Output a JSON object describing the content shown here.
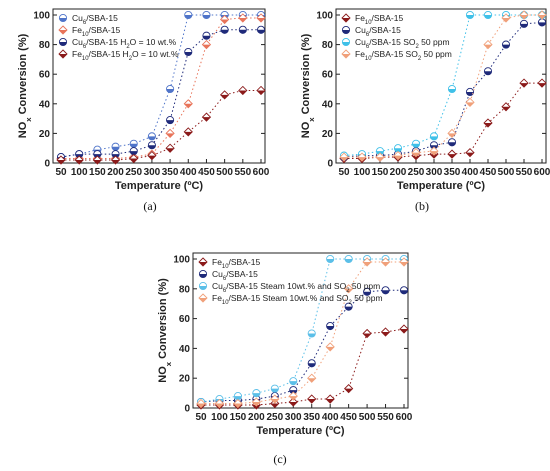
{
  "chart_data": [
    {
      "type": "scatter",
      "caption": "(a)",
      "xlabel": "Temperature (ºC)",
      "ylabel_main": "NO",
      "ylabel_sub": "x",
      "ylabel_rest": " Conversion (%)",
      "xlim": [
        50,
        600
      ],
      "ylim": [
        0,
        100
      ],
      "xticks": [
        50,
        100,
        150,
        200,
        250,
        300,
        350,
        400,
        450,
        500,
        550,
        600
      ],
      "yticks": [
        0,
        20,
        40,
        60,
        80,
        100
      ],
      "legend_position": "top-left",
      "series": [
        {
          "name": "Cu6/SBA-15",
          "color": "#4f74c9",
          "marker": "circle",
          "x": [
            50,
            100,
            150,
            200,
            250,
            300,
            350,
            400,
            450,
            500,
            550,
            600
          ],
          "y": [
            4,
            6,
            9,
            11,
            13,
            18,
            50,
            100,
            100,
            100,
            100,
            100
          ]
        },
        {
          "name": "Fe10/SBA-15",
          "color": "#e8745a",
          "marker": "diamond",
          "x": [
            50,
            100,
            150,
            200,
            250,
            300,
            350,
            400,
            450,
            500,
            550,
            600
          ],
          "y": [
            3,
            3,
            3,
            3,
            4,
            6,
            20,
            40,
            80,
            97,
            98,
            98
          ]
        },
        {
          "name": "Cu6/SBA-15 H2O = 10 wt.%",
          "color": "#1f2a7a",
          "marker": "circle",
          "x": [
            50,
            100,
            150,
            200,
            250,
            300,
            350,
            400,
            450,
            500,
            550,
            600
          ],
          "y": [
            4,
            6,
            6,
            6,
            8,
            12,
            29,
            75,
            86,
            90,
            90,
            90
          ]
        },
        {
          "name": "Fe10/SBA-15 H2O = 10 wt.%",
          "color": "#8b1a1a",
          "marker": "diamond",
          "x": [
            50,
            100,
            150,
            200,
            250,
            300,
            350,
            400,
            450,
            500,
            550,
            600
          ],
          "y": [
            2,
            2,
            2,
            2,
            3,
            5,
            10,
            21,
            31,
            46,
            49,
            49
          ]
        }
      ]
    },
    {
      "type": "scatter",
      "caption": "(b)",
      "xlabel": "Temperature (ºC)",
      "ylabel_main": "NO",
      "ylabel_sub": "x",
      "ylabel_rest": " Conversion (%)",
      "xlim": [
        50,
        600
      ],
      "ylim": [
        0,
        100
      ],
      "xticks": [
        50,
        100,
        150,
        200,
        250,
        300,
        350,
        400,
        450,
        500,
        550,
        600
      ],
      "yticks": [
        0,
        20,
        40,
        60,
        80,
        100
      ],
      "legend_position": "top-left",
      "series": [
        {
          "name": "Fe10/SBA-15",
          "color": "#8b1a1a",
          "marker": "diamond",
          "x": [
            50,
            100,
            150,
            200,
            250,
            300,
            350,
            400,
            450,
            500,
            550,
            600
          ],
          "y": [
            3,
            3,
            4,
            4,
            5,
            6,
            6,
            7,
            27,
            38,
            54,
            54
          ]
        },
        {
          "name": "Cu6/SBA-15",
          "color": "#1f2a7a",
          "marker": "circle",
          "x": [
            50,
            100,
            150,
            200,
            250,
            300,
            350,
            400,
            450,
            500,
            550,
            600
          ],
          "y": [
            4,
            5,
            5,
            6,
            8,
            12,
            14,
            48,
            62,
            80,
            94,
            95
          ]
        },
        {
          "name": "Cu6/SBA-15 SO2 50 ppm",
          "color": "#3fc0e8",
          "marker": "circle",
          "x": [
            50,
            100,
            150,
            200,
            250,
            300,
            350,
            400,
            450,
            500,
            550,
            600
          ],
          "y": [
            5,
            6,
            8,
            10,
            13,
            18,
            50,
            100,
            100,
            100,
            100,
            100
          ]
        },
        {
          "name": "Fe10/SBA-15 SO2 50 ppm",
          "color": "#f0a07a",
          "marker": "diamond",
          "x": [
            50,
            100,
            150,
            200,
            250,
            300,
            350,
            400,
            450,
            500,
            550,
            600
          ],
          "y": [
            4,
            4,
            4,
            5,
            7,
            8,
            20,
            41,
            80,
            98,
            100,
            100
          ]
        }
      ]
    },
    {
      "type": "scatter",
      "caption": "(c)",
      "xlabel": "Temperature (ºC)",
      "ylabel_main": "NO",
      "ylabel_sub": "x",
      "ylabel_rest": " Conversion (%)",
      "xlim": [
        50,
        600
      ],
      "ylim": [
        0,
        100
      ],
      "xticks": [
        50,
        100,
        150,
        200,
        250,
        300,
        350,
        400,
        450,
        500,
        550,
        600
      ],
      "yticks": [
        0,
        20,
        40,
        60,
        80,
        100
      ],
      "legend_position": "top-left",
      "series": [
        {
          "name": "Fe10/SBA-15",
          "color": "#8b1a1a",
          "marker": "diamond",
          "x": [
            50,
            100,
            150,
            200,
            250,
            300,
            350,
            400,
            450,
            500,
            550,
            600
          ],
          "y": [
            2,
            2,
            2,
            2,
            3,
            4,
            6,
            6,
            13,
            50,
            51,
            53
          ]
        },
        {
          "name": "Cu6/SBA-15",
          "color": "#1f2a7a",
          "marker": "circle",
          "x": [
            50,
            100,
            150,
            200,
            250,
            300,
            350,
            400,
            450,
            500,
            550,
            600
          ],
          "y": [
            4,
            5,
            5,
            6,
            8,
            12,
            30,
            55,
            68,
            78,
            79,
            79
          ]
        },
        {
          "name": "Cu6/SBA-15 Steam 10wt.% and SO2 50 ppm",
          "color": "#5bbfe8",
          "marker": "circle",
          "x": [
            50,
            100,
            150,
            200,
            250,
            300,
            350,
            400,
            450,
            500,
            550,
            600
          ],
          "y": [
            4,
            6,
            8,
            10,
            13,
            18,
            50,
            100,
            100,
            100,
            100,
            100
          ]
        },
        {
          "name": "Fe10/SBA-15 Steam 10wt.% and SO2 50 ppm",
          "color": "#f0a07a",
          "marker": "diamond",
          "x": [
            50,
            100,
            150,
            200,
            250,
            300,
            350,
            400,
            450,
            500,
            550,
            600
          ],
          "y": [
            3,
            3,
            3,
            4,
            6,
            8,
            20,
            41,
            80,
            98,
            98,
            98
          ]
        }
      ]
    }
  ],
  "legend_labels": [
    [
      {
        "main": "Cu",
        "sub": "6",
        "rest": "/SBA-15"
      },
      {
        "main": "Fe",
        "sub": "10",
        "rest": "/SBA-15"
      },
      {
        "main": "Cu",
        "sub": "6",
        "rest": "/SBA-15 H",
        "sub2": "2",
        "rest2": "O = 10 wt.%"
      },
      {
        "main": "Fe",
        "sub": "10",
        "rest": "/SBA-15 H",
        "sub2": "2",
        "rest2": "O = 10 wt.%"
      }
    ],
    [
      {
        "main": "Fe",
        "sub": "10",
        "rest": "/SBA-15"
      },
      {
        "main": "Cu",
        "sub": "6",
        "rest": "/SBA-15"
      },
      {
        "main": "Cu",
        "sub": "6",
        "rest": "/SBA-15 SO",
        "sub2": "2",
        "rest2": " 50 ppm"
      },
      {
        "main": "Fe",
        "sub": "10",
        "rest": "/SBA-15 SO",
        "sub2": "2",
        "rest2": " 50 ppm"
      }
    ],
    [
      {
        "main": "Fe",
        "sub": "10",
        "rest": "/SBA-15"
      },
      {
        "main": "Cu",
        "sub": "6",
        "rest": "/SBA-15"
      },
      {
        "main": "Cu",
        "sub": "6",
        "rest": "/SBA-15 Steam 10wt.% and SO",
        "sub2": "2",
        "rest2": " 50 ppm"
      },
      {
        "main": "Fe",
        "sub": "10",
        "rest": "/SBA-15 Steam 10wt.% and SO",
        "sub2": "2",
        "rest2": " 50 ppm"
      }
    ]
  ]
}
